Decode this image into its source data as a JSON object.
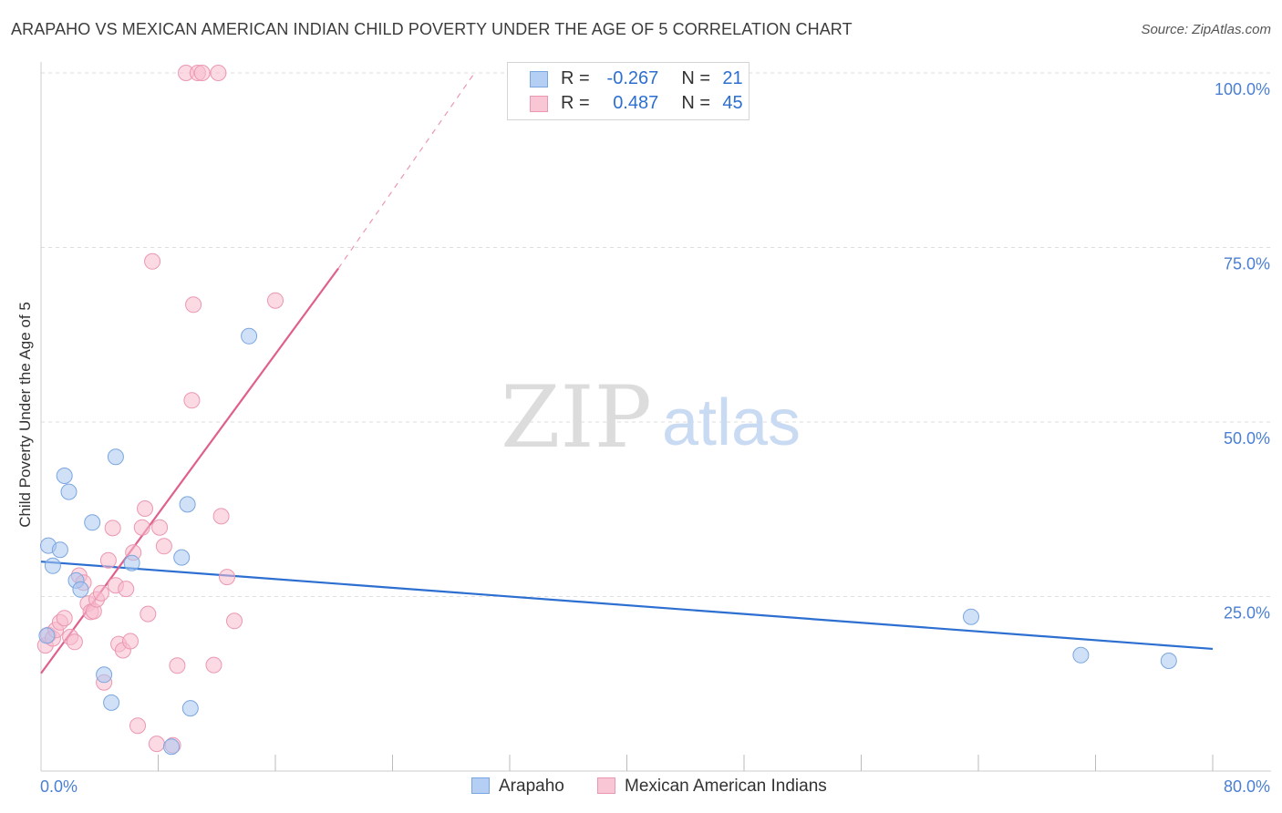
{
  "chart_data": {
    "type": "scatter",
    "title": "ARAPAHO VS MEXICAN AMERICAN INDIAN CHILD POVERTY UNDER THE AGE OF 5 CORRELATION CHART",
    "source": "Source: ZipAtlas.com",
    "ylabel": "Child Poverty Under the Age of 5",
    "xlabel": "",
    "xlim": [
      0,
      80
    ],
    "ylim": [
      0,
      100
    ],
    "x_tick_labels": [
      "0.0%",
      "80.0%"
    ],
    "y_ticks": [
      25,
      50,
      75,
      100
    ],
    "y_tick_labels": [
      "25.0%",
      "50.0%",
      "75.0%",
      "100.0%"
    ],
    "grid": true,
    "watermark": {
      "zip": "ZIP",
      "atlas": "atlas"
    },
    "legend": {
      "placement": "top-center",
      "rows": [
        {
          "r_label": "R =",
          "r_value": "-0.267",
          "n_label": "N =",
          "n_value": "21"
        },
        {
          "r_label": "R =",
          "r_value": "0.487",
          "n_label": "N =",
          "n_value": "45"
        }
      ]
    },
    "series": [
      {
        "name": "Arapaho",
        "color": "#a9c7f0",
        "stroke": "#7aa6e0",
        "line_color": "#2c6fd1",
        "trend": {
          "x0": 0,
          "y0": 30.0,
          "x1": 80,
          "y1": 17.5
        },
        "points": [
          [
            0.4,
            19.4
          ],
          [
            0.5,
            32.3
          ],
          [
            0.8,
            29.4
          ],
          [
            1.3,
            31.7
          ],
          [
            1.6,
            42.3
          ],
          [
            1.9,
            40.0
          ],
          [
            2.4,
            27.3
          ],
          [
            2.7,
            26.0
          ],
          [
            3.5,
            35.6
          ],
          [
            4.3,
            13.8
          ],
          [
            4.8,
            9.8
          ],
          [
            5.1,
            45.0
          ],
          [
            6.2,
            29.8
          ],
          [
            8.9,
            3.5
          ],
          [
            9.6,
            30.6
          ],
          [
            10.0,
            38.2
          ],
          [
            10.2,
            9.0
          ],
          [
            14.2,
            62.3
          ],
          [
            63.5,
            22.1
          ],
          [
            71.0,
            16.6
          ],
          [
            77.0,
            15.8
          ]
        ]
      },
      {
        "name": "Mexican American Indians",
        "color": "#f7bccd",
        "stroke": "#ec97b1",
        "line_color": "#e0608d",
        "trend": {
          "x0": 0,
          "y0": 14.0,
          "x1": 20.3,
          "y1": 72.0
        },
        "trend_dashed": {
          "x0": 20.3,
          "y0": 72.0,
          "x1": 29.6,
          "y1": 100.0
        },
        "points": [
          [
            0.3,
            18.0
          ],
          [
            0.5,
            19.5
          ],
          [
            0.8,
            19.0
          ],
          [
            1.0,
            20.2
          ],
          [
            1.3,
            21.3
          ],
          [
            1.6,
            21.9
          ],
          [
            2.0,
            19.2
          ],
          [
            2.3,
            18.5
          ],
          [
            2.6,
            28.0
          ],
          [
            2.9,
            27.0
          ],
          [
            3.2,
            24.0
          ],
          [
            3.4,
            22.8
          ],
          [
            3.6,
            22.9
          ],
          [
            3.8,
            24.6
          ],
          [
            4.1,
            25.5
          ],
          [
            4.3,
            12.7
          ],
          [
            4.6,
            30.2
          ],
          [
            4.9,
            34.8
          ],
          [
            5.1,
            26.6
          ],
          [
            5.3,
            18.2
          ],
          [
            5.6,
            17.3
          ],
          [
            5.8,
            26.1
          ],
          [
            6.1,
            18.6
          ],
          [
            6.3,
            31.3
          ],
          [
            6.6,
            6.5
          ],
          [
            6.9,
            34.9
          ],
          [
            7.1,
            37.6
          ],
          [
            7.3,
            22.5
          ],
          [
            7.6,
            73.0
          ],
          [
            7.9,
            3.9
          ],
          [
            8.1,
            34.9
          ],
          [
            8.4,
            32.2
          ],
          [
            9.0,
            3.7
          ],
          [
            9.3,
            15.1
          ],
          [
            9.9,
            100.0
          ],
          [
            10.3,
            53.1
          ],
          [
            10.4,
            66.8
          ],
          [
            10.7,
            100.0
          ],
          [
            11.0,
            100.0
          ],
          [
            11.8,
            15.2
          ],
          [
            12.1,
            100.0
          ],
          [
            12.3,
            36.5
          ],
          [
            12.7,
            27.8
          ],
          [
            13.2,
            21.5
          ],
          [
            16.0,
            67.4
          ]
        ]
      }
    ]
  },
  "bottom_legend": [
    {
      "label": "Arapaho"
    },
    {
      "label": "Mexican American Indians"
    }
  ]
}
